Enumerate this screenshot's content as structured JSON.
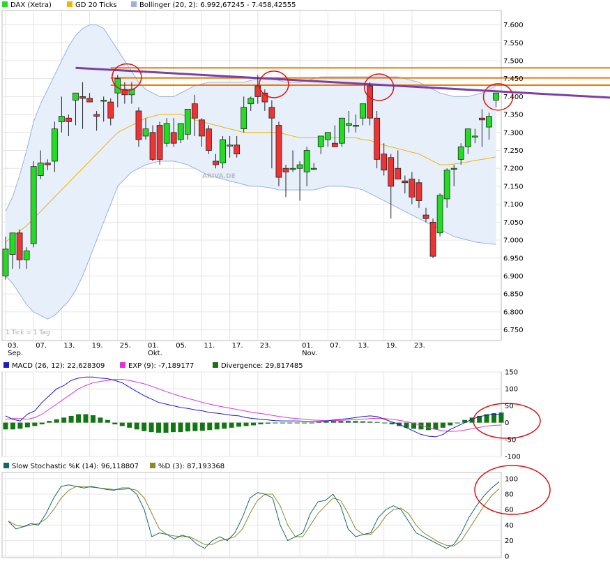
{
  "colors": {
    "up": "#22dd22",
    "down": "#ee3333",
    "gd": "#f2b400",
    "band_fill": "#e7effb",
    "band_line": "#9ab0e0",
    "trend": "#7b3fa8",
    "resistance": "#f07a00",
    "circle": "#dd1111",
    "macd": "#1a1acc",
    "signal": "#dd33dd",
    "divergence": "#117711",
    "stoch_k": "#0f6b6b",
    "stoch_d": "#8a8a2a",
    "grid": "#e4e4e4"
  },
  "price_panel": {
    "note": "1 Tick = 1 Tag",
    "watermark": "ARIVA.DE",
    "legend": [
      {
        "label": "DAX (Xetra)",
        "color": "#22dd22"
      },
      {
        "label": "GD 20 Ticks",
        "color": "#f2b400"
      },
      {
        "label": "Bollinger (20, 2): 6.992,67245 - 7.458,42555",
        "color": "#9ab0e0"
      }
    ],
    "y_ticks": [
      "7.600",
      "7.550",
      "7.500",
      "7.450",
      "7.400",
      "7.350",
      "7.300",
      "7.250",
      "7.200",
      "7.150",
      "7.100",
      "7.050",
      "7.000",
      "6.950",
      "6.900",
      "6.850",
      "6.800",
      "6.750"
    ],
    "x_ticks": [
      {
        "label": "03.",
        "sub": "Sep.",
        "i": 0
      },
      {
        "label": "07.",
        "sub": "",
        "i": 4
      },
      {
        "label": "13.",
        "sub": "",
        "i": 8
      },
      {
        "label": "19.",
        "sub": "",
        "i": 12
      },
      {
        "label": "25.",
        "sub": "",
        "i": 16
      },
      {
        "label": "01.",
        "sub": "Okt.",
        "i": 20
      },
      {
        "label": "05.",
        "sub": "",
        "i": 24
      },
      {
        "label": "11.",
        "sub": "",
        "i": 28
      },
      {
        "label": "17.",
        "sub": "",
        "i": 32
      },
      {
        "label": "23.",
        "sub": "",
        "i": 36
      },
      {
        "label": "01.",
        "sub": "Nov.",
        "i": 42
      },
      {
        "label": "07.",
        "sub": "",
        "i": 46
      },
      {
        "label": "13.",
        "sub": "",
        "i": 50
      },
      {
        "label": "19.",
        "sub": "",
        "i": 54
      },
      {
        "label": "23.",
        "sub": "",
        "i": 58
      }
    ]
  },
  "macd_panel": {
    "legend": [
      {
        "label": "MACD (26, 12): 22,628309",
        "color": "#1a1acc"
      },
      {
        "label": "EXP (9): -7,189177",
        "color": "#dd33dd"
      },
      {
        "label": "Divergence: 29,817485",
        "color": "#117711"
      }
    ],
    "y_ticks": [
      "150",
      "100",
      "50",
      "0",
      "-50",
      "-100"
    ]
  },
  "stoch_panel": {
    "legend": [
      {
        "label": "Slow Stochastic %K (14): 96,118807",
        "color": "#0f6b6b"
      },
      {
        "label": "%D (3): 87,193368",
        "color": "#8a8a2a"
      }
    ],
    "y_ticks": [
      "100",
      "80",
      "60",
      "40",
      "20",
      "0"
    ]
  },
  "chart_data": {
    "type": "candlestick",
    "title": "DAX (Xetra)",
    "price_ylim": [
      6720,
      7640
    ],
    "candles": [
      {
        "o": 6900,
        "h": 7010,
        "l": 6890,
        "c": 6975
      },
      {
        "o": 6960,
        "h": 7020,
        "l": 6920,
        "c": 7020
      },
      {
        "o": 7020,
        "h": 7030,
        "l": 6920,
        "c": 6945
      },
      {
        "o": 6945,
        "h": 6980,
        "l": 6920,
        "c": 6970
      },
      {
        "o": 6990,
        "h": 7220,
        "l": 6980,
        "c": 7205
      },
      {
        "o": 7180,
        "h": 7250,
        "l": 7170,
        "c": 7215
      },
      {
        "o": 7215,
        "h": 7225,
        "l": 7195,
        "c": 7210
      },
      {
        "o": 7220,
        "h": 7330,
        "l": 7190,
        "c": 7310
      },
      {
        "o": 7330,
        "h": 7400,
        "l": 7300,
        "c": 7345
      },
      {
        "o": 7340,
        "h": 7350,
        "l": 7290,
        "c": 7330
      },
      {
        "o": 7390,
        "h": 7410,
        "l": 7320,
        "c": 7410
      },
      {
        "o": 7400,
        "h": 7440,
        "l": 7310,
        "c": 7395
      },
      {
        "o": 7395,
        "h": 7410,
        "l": 7385,
        "c": 7385
      },
      {
        "o": 7350,
        "h": 7360,
        "l": 7305,
        "c": 7345
      },
      {
        "o": 7390,
        "h": 7400,
        "l": 7330,
        "c": 7390
      },
      {
        "o": 7385,
        "h": 7395,
        "l": 7320,
        "c": 7340
      },
      {
        "o": 7410,
        "h": 7460,
        "l": 7370,
        "c": 7450
      },
      {
        "o": 7420,
        "h": 7440,
        "l": 7380,
        "c": 7405
      },
      {
        "o": 7405,
        "h": 7440,
        "l": 7380,
        "c": 7420
      },
      {
        "o": 7360,
        "h": 7370,
        "l": 7260,
        "c": 7280
      },
      {
        "o": 7290,
        "h": 7340,
        "l": 7280,
        "c": 7310
      },
      {
        "o": 7300,
        "h": 7320,
        "l": 7220,
        "c": 7225
      },
      {
        "o": 7320,
        "h": 7330,
        "l": 7210,
        "c": 7225
      },
      {
        "o": 7270,
        "h": 7340,
        "l": 7260,
        "c": 7325
      },
      {
        "o": 7300,
        "h": 7340,
        "l": 7260,
        "c": 7270
      },
      {
        "o": 7280,
        "h": 7325,
        "l": 7270,
        "c": 7325
      },
      {
        "o": 7295,
        "h": 7360,
        "l": 7280,
        "c": 7365
      },
      {
        "o": 7380,
        "h": 7405,
        "l": 7290,
        "c": 7340
      },
      {
        "o": 7335,
        "h": 7340,
        "l": 7260,
        "c": 7290
      },
      {
        "o": 7310,
        "h": 7320,
        "l": 7240,
        "c": 7250
      },
      {
        "o": 7220,
        "h": 7240,
        "l": 7200,
        "c": 7210
      },
      {
        "o": 7215,
        "h": 7290,
        "l": 7200,
        "c": 7280
      },
      {
        "o": 7265,
        "h": 7290,
        "l": 7230,
        "c": 7265
      },
      {
        "o": 7265,
        "h": 7290,
        "l": 7230,
        "c": 7240
      },
      {
        "o": 7310,
        "h": 7400,
        "l": 7300,
        "c": 7370
      },
      {
        "o": 7380,
        "h": 7400,
        "l": 7360,
        "c": 7395
      },
      {
        "o": 7430,
        "h": 7460,
        "l": 7380,
        "c": 7400
      },
      {
        "o": 7410,
        "h": 7420,
        "l": 7360,
        "c": 7385
      },
      {
        "o": 7370,
        "h": 7390,
        "l": 7200,
        "c": 7340
      },
      {
        "o": 7320,
        "h": 7330,
        "l": 7150,
        "c": 7175
      },
      {
        "o": 7200,
        "h": 7210,
        "l": 7120,
        "c": 7190
      },
      {
        "o": 7200,
        "h": 7250,
        "l": 7190,
        "c": 7200
      },
      {
        "o": 7200,
        "h": 7220,
        "l": 7110,
        "c": 7210
      },
      {
        "o": 7190,
        "h": 7260,
        "l": 7150,
        "c": 7250
      },
      {
        "o": 7200,
        "h": 7215,
        "l": 7195,
        "c": 7200
      },
      {
        "o": 7260,
        "h": 7290,
        "l": 7240,
        "c": 7290
      },
      {
        "o": 7280,
        "h": 7300,
        "l": 7260,
        "c": 7300
      },
      {
        "o": 7270,
        "h": 7320,
        "l": 7260,
        "c": 7260
      },
      {
        "o": 7270,
        "h": 7340,
        "l": 7260,
        "c": 7340
      },
      {
        "o": 7320,
        "h": 7360,
        "l": 7300,
        "c": 7325
      },
      {
        "o": 7320,
        "h": 7350,
        "l": 7300,
        "c": 7320
      },
      {
        "o": 7340,
        "h": 7380,
        "l": 7320,
        "c": 7380
      },
      {
        "o": 7430,
        "h": 7440,
        "l": 7320,
        "c": 7340
      },
      {
        "o": 7340,
        "h": 7360,
        "l": 7200,
        "c": 7225
      },
      {
        "o": 7240,
        "h": 7270,
        "l": 7180,
        "c": 7195
      },
      {
        "o": 7230,
        "h": 7240,
        "l": 7060,
        "c": 7150
      },
      {
        "o": 7200,
        "h": 7250,
        "l": 7170,
        "c": 7170
      },
      {
        "o": 7165,
        "h": 7180,
        "l": 7130,
        "c": 7160
      },
      {
        "o": 7170,
        "h": 7190,
        "l": 7100,
        "c": 7120
      },
      {
        "o": 7160,
        "h": 7170,
        "l": 7090,
        "c": 7110
      },
      {
        "o": 7070,
        "h": 7090,
        "l": 7050,
        "c": 7060
      },
      {
        "o": 7050,
        "h": 7060,
        "l": 6950,
        "c": 6955
      },
      {
        "o": 7020,
        "h": 7130,
        "l": 7010,
        "c": 7125
      },
      {
        "o": 7115,
        "h": 7200,
        "l": 7090,
        "c": 7195
      },
      {
        "o": 7200,
        "h": 7210,
        "l": 7150,
        "c": 7200
      },
      {
        "o": 7225,
        "h": 7270,
        "l": 7210,
        "c": 7260
      },
      {
        "o": 7260,
        "h": 7310,
        "l": 7240,
        "c": 7310
      },
      {
        "o": 7290,
        "h": 7310,
        "l": 7270,
        "c": 7290
      },
      {
        "o": 7340,
        "h": 7365,
        "l": 7260,
        "c": 7335
      },
      {
        "o": 7315,
        "h": 7355,
        "l": 7280,
        "c": 7345
      },
      {
        "o": 7390,
        "h": 7410,
        "l": 7370,
        "c": 7410
      }
    ],
    "gd20": [
      6995,
      7010,
      7025,
      7040,
      7060,
      7080,
      7100,
      7120,
      7140,
      7160,
      7180,
      7200,
      7220,
      7240,
      7260,
      7280,
      7300,
      7310,
      7320,
      7330,
      7340,
      7345,
      7350,
      7350,
      7350,
      7350,
      7345,
      7335,
      7330,
      7325,
      7320,
      7315,
      7310,
      7305,
      7300,
      7300,
      7300,
      7300,
      7300,
      7300,
      7295,
      7290,
      7285,
      7285,
      7285,
      7285,
      7285,
      7285,
      7285,
      7285,
      7285,
      7280,
      7278,
      7270,
      7265,
      7260,
      7255,
      7250,
      7245,
      7240,
      7230,
      7220,
      7210,
      7210,
      7212,
      7215,
      7218,
      7222,
      7225,
      7228,
      7232
    ],
    "boll_upper": [
      7080,
      7120,
      7180,
      7250,
      7330,
      7380,
      7420,
      7460,
      7500,
      7540,
      7570,
      7590,
      7600,
      7600,
      7590,
      7560,
      7530,
      7500,
      7470,
      7440,
      7420,
      7410,
      7400,
      7400,
      7400,
      7410,
      7420,
      7430,
      7435,
      7440,
      7440,
      7440,
      7440,
      7440,
      7440,
      7445,
      7450,
      7450,
      7450,
      7445,
      7440,
      7440,
      7440,
      7445,
      7450,
      7455,
      7455,
      7455,
      7455,
      7455,
      7455,
      7455,
      7455,
      7455,
      7455,
      7455,
      7455,
      7450,
      7445,
      7440,
      7430,
      7420,
      7410,
      7405,
      7400,
      7400,
      7400,
      7405,
      7410,
      7420,
      7430
    ],
    "boll_lower": [
      6900,
      6880,
      6850,
      6820,
      6800,
      6790,
      6780,
      6790,
      6810,
      6830,
      6860,
      6900,
      6950,
      7000,
      7050,
      7100,
      7150,
      7170,
      7190,
      7200,
      7210,
      7215,
      7220,
      7220,
      7220,
      7215,
      7210,
      7200,
      7190,
      7180,
      7175,
      7170,
      7165,
      7160,
      7155,
      7150,
      7150,
      7148,
      7145,
      7140,
      7140,
      7140,
      7140,
      7140,
      7140,
      7145,
      7150,
      7150,
      7150,
      7148,
      7145,
      7140,
      7130,
      7120,
      7110,
      7100,
      7090,
      7080,
      7070,
      7060,
      7050,
      7040,
      7030,
      7020,
      7010,
      7005,
      7000,
      6995,
      6992,
      6990,
      6988
    ],
    "trendline": [
      [
        10,
        7480
      ],
      [
        79,
        7405
      ]
    ],
    "resistance_levels": [
      7480,
      7452,
      7432
    ],
    "macd": [
      20,
      10,
      5,
      25,
      35,
      60,
      80,
      100,
      110,
      125,
      132,
      135,
      135,
      132,
      130,
      125,
      118,
      105,
      92,
      80,
      70,
      60,
      55,
      50,
      45,
      42,
      38,
      35,
      30,
      28,
      25,
      22,
      20,
      15,
      12,
      10,
      8,
      6,
      5,
      5,
      5,
      4,
      3,
      3,
      5,
      8,
      10,
      12,
      15,
      18,
      20,
      18,
      10,
      2,
      -5,
      -15,
      -25,
      -35,
      -40,
      -42,
      -35,
      -20,
      -10,
      0,
      10,
      18,
      22,
      25,
      23
    ],
    "exp": [
      10,
      12,
      12,
      10,
      15,
      25,
      40,
      55,
      70,
      85,
      100,
      110,
      118,
      122,
      125,
      128,
      128,
      125,
      120,
      115,
      108,
      100,
      92,
      85,
      78,
      72,
      66,
      60,
      55,
      50,
      46,
      42,
      38,
      34,
      30,
      27,
      24,
      20,
      17,
      14,
      12,
      10,
      8,
      7,
      6,
      6,
      7,
      8,
      9,
      10,
      12,
      13,
      12,
      10,
      7,
      3,
      -2,
      -8,
      -14,
      -20,
      -24,
      -26,
      -25,
      -22,
      -18,
      -14,
      -10,
      -8,
      -7
    ],
    "divergence": [
      -20,
      -20,
      -18,
      -14,
      -10,
      -5,
      5,
      10,
      15,
      20,
      25,
      25,
      22,
      15,
      8,
      -5,
      -10,
      -15,
      -20,
      -25,
      -28,
      -30,
      -30,
      -28,
      -28,
      -26,
      -25,
      -24,
      -22,
      -20,
      -18,
      -15,
      -12,
      -10,
      -8,
      -5,
      -3,
      -2,
      0,
      0,
      0,
      0,
      0,
      2,
      4,
      5,
      5,
      5,
      5,
      4,
      3,
      2,
      0,
      -5,
      -10,
      -15,
      -18,
      -20,
      -22,
      -20,
      -15,
      -8,
      0,
      8,
      15,
      20,
      25,
      28,
      30
    ],
    "stoch_k": [
      45,
      35,
      38,
      42,
      40,
      55,
      75,
      90,
      92,
      90,
      88,
      90,
      88,
      86,
      85,
      88,
      88,
      80,
      60,
      25,
      30,
      28,
      22,
      27,
      24,
      15,
      10,
      20,
      25,
      20,
      30,
      50,
      75,
      82,
      80,
      75,
      40,
      20,
      25,
      30,
      55,
      70,
      72,
      80,
      65,
      35,
      25,
      28,
      30,
      50,
      60,
      65,
      60,
      45,
      30,
      25,
      20,
      15,
      10,
      15,
      30,
      50,
      65,
      78,
      88,
      96
    ],
    "stoch_d": [
      45,
      40,
      38,
      40,
      42,
      48,
      60,
      75,
      85,
      90,
      90,
      89,
      88,
      87,
      86,
      86,
      87,
      85,
      75,
      55,
      35,
      28,
      26,
      25,
      25,
      20,
      15,
      15,
      20,
      22,
      25,
      35,
      55,
      72,
      80,
      80,
      65,
      40,
      25,
      25,
      40,
      55,
      65,
      75,
      72,
      55,
      35,
      28,
      28,
      38,
      52,
      60,
      62,
      55,
      40,
      30,
      24,
      18,
      14,
      13,
      20,
      35,
      50,
      65,
      78,
      87
    ]
  }
}
